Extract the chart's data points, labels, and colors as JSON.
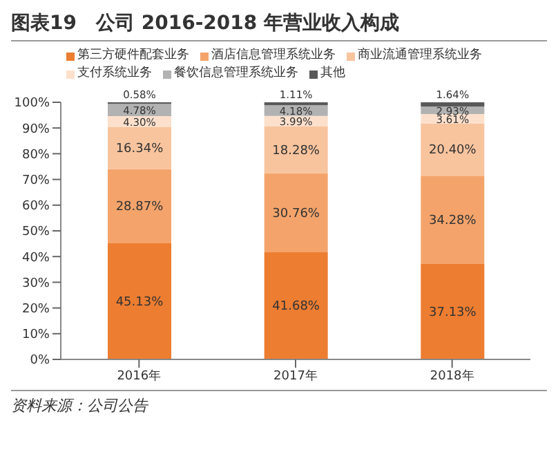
{
  "chart_data": {
    "type": "bar",
    "title": "图表19　公司 2016-2018 年营业收入构成",
    "categories": [
      "2016年",
      "2017年",
      "2018年"
    ],
    "stacked": true,
    "series": [
      {
        "name": "第三方硬件配套业务",
        "color": "#ed7d31",
        "values": [
          45.13,
          41.68,
          37.13
        ],
        "value_labels": [
          "45.13%",
          "41.68%",
          "37.13%"
        ]
      },
      {
        "name": "酒店信息管理系统业务",
        "color": "#f4a46b",
        "values": [
          28.87,
          30.76,
          34.28
        ],
        "value_labels": [
          "28.87%",
          "30.76%",
          "34.28%"
        ]
      },
      {
        "name": "商业流通管理系统业务",
        "color": "#f8c49e",
        "values": [
          16.34,
          18.28,
          20.4
        ],
        "value_labels": [
          "16.34%",
          "18.28%",
          "20.40%"
        ]
      },
      {
        "name": "支付系统业务",
        "color": "#fce0cc",
        "values": [
          4.3,
          3.99,
          3.61
        ],
        "value_labels": [
          "4.30%",
          "3.99%",
          "3.61%"
        ]
      },
      {
        "name": "餐饮信息管理系统业务",
        "color": "#b2b2b2",
        "values": [
          4.78,
          4.18,
          2.93
        ],
        "value_labels": [
          "4.78%",
          "4.18%",
          "2.93%"
        ]
      },
      {
        "name": "其他",
        "color": "#595959",
        "values": [
          0.58,
          1.11,
          1.64
        ],
        "value_labels": [
          "0.58%",
          "1.11%",
          "1.64%"
        ]
      }
    ],
    "ylim": [
      0,
      100
    ],
    "yticks": [
      {
        "value": 0,
        "label": "0%"
      },
      {
        "value": 10,
        "label": "10%"
      },
      {
        "value": 20,
        "label": "20%"
      },
      {
        "value": 30,
        "label": "30%"
      },
      {
        "value": 40,
        "label": "40%"
      },
      {
        "value": 50,
        "label": "50%"
      },
      {
        "value": 60,
        "label": "60%"
      },
      {
        "value": 70,
        "label": "70%"
      },
      {
        "value": 80,
        "label": "80%"
      },
      {
        "value": 90,
        "label": "90%"
      },
      {
        "value": 100,
        "label": "100%"
      }
    ],
    "grid": false,
    "legend": "top",
    "annotations": [
      "资料来源：公司公告"
    ]
  }
}
